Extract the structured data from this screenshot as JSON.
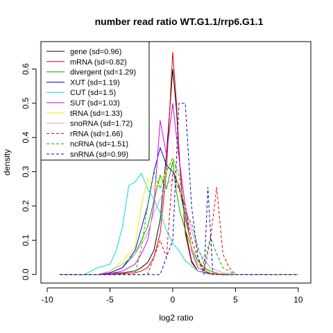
{
  "chart_data": {
    "type": "line",
    "title": "number read ratio WT.G1.1/rrp6.G1.1",
    "xlabel": "log2 ratio",
    "ylabel": "density",
    "xlim": [
      -10.5,
      11
    ],
    "ylim": [
      -0.025,
      0.68
    ],
    "xticks": [
      -10,
      -5,
      0,
      5,
      10
    ],
    "yticks": [
      0.0,
      0.1,
      0.2,
      0.3,
      0.4,
      0.5,
      0.6
    ],
    "grid": false,
    "legend_position": "top-left",
    "series": [
      {
        "name": "gene (sd=0.96)",
        "color": "#000000",
        "dash": "solid",
        "x": [
          -9,
          -6,
          -5,
          -4,
          -3,
          -2.5,
          -2,
          -1.5,
          -1,
          -0.5,
          0,
          0.3,
          0.6,
          1,
          1.5,
          2,
          3,
          4,
          5
        ],
        "y": [
          0,
          0,
          0.003,
          0.005,
          0.01,
          0.02,
          0.035,
          0.07,
          0.16,
          0.35,
          0.6,
          0.48,
          0.3,
          0.13,
          0.04,
          0.01,
          0.003,
          0,
          0
        ]
      },
      {
        "name": "mRNA (sd=0.82)",
        "color": "#dd0000",
        "dash": "solid",
        "x": [
          -9,
          -5,
          -4,
          -3,
          -2.5,
          -2,
          -1.5,
          -1,
          -0.5,
          0,
          0.3,
          0.6,
          1,
          1.5,
          2,
          3,
          4,
          5
        ],
        "y": [
          0,
          0,
          0.002,
          0.005,
          0.01,
          0.02,
          0.05,
          0.12,
          0.3,
          0.65,
          0.5,
          0.3,
          0.12,
          0.035,
          0.01,
          0.002,
          0,
          0
        ]
      },
      {
        "name": "divergent (sd=1.29)",
        "color": "#00aa00",
        "dash": "solid",
        "x": [
          -9,
          -6,
          -5,
          -4,
          -3,
          -2,
          -1,
          -0.5,
          0,
          0.3,
          0.6,
          1,
          1.5,
          2,
          2.5,
          3,
          4,
          5
        ],
        "y": [
          0,
          0,
          0.005,
          0.02,
          0.06,
          0.14,
          0.29,
          0.25,
          0.33,
          0.24,
          0.18,
          0.13,
          0.08,
          0.04,
          0.02,
          0.01,
          0,
          0
        ]
      },
      {
        "name": "XUT (sd=1.19)",
        "color": "#0000cc",
        "dash": "solid",
        "x": [
          -9,
          -6,
          -5,
          -4,
          -3,
          -2,
          -1.5,
          -1,
          -0.5,
          0,
          0.5,
          1,
          1.5,
          2,
          3,
          4,
          5
        ],
        "y": [
          0,
          0,
          0.005,
          0.02,
          0.07,
          0.2,
          0.3,
          0.37,
          0.32,
          0.3,
          0.26,
          0.17,
          0.08,
          0.03,
          0.005,
          0,
          0
        ]
      },
      {
        "name": "CUT (sd=1.5)",
        "color": "#00dddd",
        "dash": "solid",
        "x": [
          -9,
          -7,
          -6,
          -5,
          -4.5,
          -4,
          -3.5,
          -3,
          -2.5,
          -2,
          -1.5,
          -1,
          -0.5,
          0,
          0.5,
          1,
          2,
          3
        ],
        "y": [
          0,
          0,
          0.02,
          0.03,
          0.07,
          0.14,
          0.26,
          0.27,
          0.295,
          0.25,
          0.22,
          0.18,
          0.13,
          0.09,
          0.07,
          0.04,
          0.01,
          0
        ]
      },
      {
        "name": "SUT (sd=1.03)",
        "color": "#dd00dd",
        "dash": "solid",
        "x": [
          -9,
          -6,
          -5,
          -4,
          -3,
          -2.5,
          -2,
          -1.5,
          -1,
          -0.5,
          0,
          0.5,
          1,
          1.5,
          2,
          3,
          5
        ],
        "y": [
          0,
          0,
          0.003,
          0.01,
          0.03,
          0.06,
          0.1,
          0.2,
          0.45,
          0.35,
          0.5,
          0.34,
          0.2,
          0.07,
          0.02,
          0.003,
          0
        ]
      },
      {
        "name": "tRNA (sd=1.33)",
        "color": "#eeee00",
        "dash": "solid",
        "x": [
          -9,
          -6,
          -5,
          -4,
          -3,
          -2.5,
          -2,
          -1.5,
          -1,
          -0.5,
          0,
          0.5,
          1,
          1.5,
          2,
          3,
          5
        ],
        "y": [
          0,
          0,
          0.01,
          0.04,
          0.08,
          0.2,
          0.28,
          0.25,
          0.27,
          0.3,
          0.34,
          0.25,
          0.16,
          0.08,
          0.03,
          0.005,
          0
        ]
      },
      {
        "name": "snoRNA (sd=1.72)",
        "color": "#c8a0c8",
        "dash": "solid",
        "x": [
          -9,
          -6,
          -5,
          -4,
          -3,
          -2,
          -1.5,
          -1,
          -0.5,
          0,
          0.5,
          1,
          1.5,
          2,
          3,
          4,
          5
        ],
        "y": [
          0,
          0,
          0.01,
          0.03,
          0.06,
          0.12,
          0.18,
          0.22,
          0.26,
          0.28,
          0.25,
          0.2,
          0.13,
          0.07,
          0.02,
          0.005,
          0
        ]
      },
      {
        "name": "rRNA (sd=1.66)",
        "color": "#dd0000",
        "dash": "dashed",
        "x": [
          -9,
          -2,
          -1,
          -0.5,
          0,
          0.5,
          1,
          1.5,
          2,
          2.5,
          3,
          3.5,
          4,
          4.5,
          5,
          6,
          10
        ],
        "y": [
          0,
          0,
          0.1,
          0.05,
          0.3,
          0.25,
          0.2,
          0.1,
          0.05,
          0.01,
          0.1,
          0.255,
          0.06,
          0.02,
          0,
          0,
          0
        ]
      },
      {
        "name": "ncRNA (sd=1.51)",
        "color": "#00aa00",
        "dash": "dashed",
        "x": [
          -9,
          -3,
          -2.5,
          -2,
          -1.5,
          -1,
          -0.5,
          0,
          0.5,
          1,
          1.5,
          2,
          2.5,
          3,
          3.5,
          4,
          5,
          10
        ],
        "y": [
          0,
          0,
          0.08,
          0.2,
          0.3,
          0.25,
          0.3,
          0.34,
          0.29,
          0.18,
          0.15,
          0.08,
          0.03,
          0.11,
          0.06,
          0.02,
          0,
          0
        ]
      },
      {
        "name": "snRNA (sd=0.99)",
        "color": "#0000cc",
        "dash": "dashed",
        "x": [
          -9,
          -1,
          -0.5,
          0,
          0.5,
          1,
          1.5,
          2,
          2.5,
          2.8,
          3.2,
          3.5,
          4,
          10
        ],
        "y": [
          0,
          0,
          0.05,
          0.1,
          0.5,
          0.5,
          0.2,
          0.05,
          0.0,
          0.255,
          0.0,
          0,
          0,
          0
        ]
      }
    ]
  }
}
